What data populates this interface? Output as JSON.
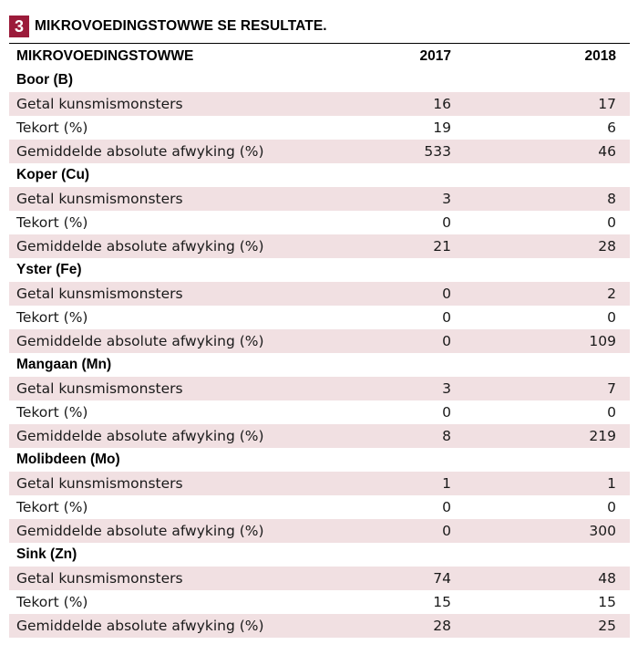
{
  "figure": {
    "number": "3",
    "title": "MIKROVOEDINGSTOWWE SE RESULTATE."
  },
  "colors": {
    "badge": "#9b1b3a",
    "row_shade": "#f1e0e2"
  },
  "table": {
    "header": {
      "label": "MIKROVOEDINGSTOWWE",
      "y2017": "2017",
      "y2018": "2018"
    },
    "groups": [
      {
        "name": "Boor (B)",
        "rows": [
          {
            "label": "Getal kunsmismonsters",
            "y2017": "16",
            "y2018": "17"
          },
          {
            "label": "Tekort (%)",
            "y2017": "19",
            "y2018": "6"
          },
          {
            "label": "Gemiddelde absolute afwyking (%)",
            "y2017": "533",
            "y2018": "46"
          }
        ]
      },
      {
        "name": "Koper (Cu)",
        "rows": [
          {
            "label": "Getal kunsmismonsters",
            "y2017": "3",
            "y2018": "8"
          },
          {
            "label": "Tekort (%)",
            "y2017": "0",
            "y2018": "0"
          },
          {
            "label": "Gemiddelde absolute afwyking (%)",
            "y2017": "21",
            "y2018": "28"
          }
        ]
      },
      {
        "name": "Yster (Fe)",
        "rows": [
          {
            "label": "Getal kunsmismonsters",
            "y2017": "0",
            "y2018": "2"
          },
          {
            "label": "Tekort (%)",
            "y2017": "0",
            "y2018": "0"
          },
          {
            "label": "Gemiddelde absolute afwyking (%)",
            "y2017": "0",
            "y2018": "109"
          }
        ]
      },
      {
        "name": "Mangaan (Mn)",
        "rows": [
          {
            "label": "Getal kunsmismonsters",
            "y2017": "3",
            "y2018": "7"
          },
          {
            "label": "Tekort (%)",
            "y2017": "0",
            "y2018": "0"
          },
          {
            "label": "Gemiddelde absolute afwyking (%)",
            "y2017": "8",
            "y2018": "219"
          }
        ]
      },
      {
        "name": "Molibdeen (Mo)",
        "rows": [
          {
            "label": "Getal kunsmismonsters",
            "y2017": "1",
            "y2018": "1"
          },
          {
            "label": "Tekort (%)",
            "y2017": "0",
            "y2018": "0"
          },
          {
            "label": "Gemiddelde absolute afwyking (%)",
            "y2017": "0",
            "y2018": "300"
          }
        ]
      },
      {
        "name": "Sink (Zn)",
        "rows": [
          {
            "label": "Getal kunsmismonsters",
            "y2017": "74",
            "y2018": "48"
          },
          {
            "label": "Tekort (%)",
            "y2017": "15",
            "y2018": "15"
          },
          {
            "label": "Gemiddelde absolute afwyking (%)",
            "y2017": "28",
            "y2018": "25"
          }
        ]
      }
    ]
  }
}
